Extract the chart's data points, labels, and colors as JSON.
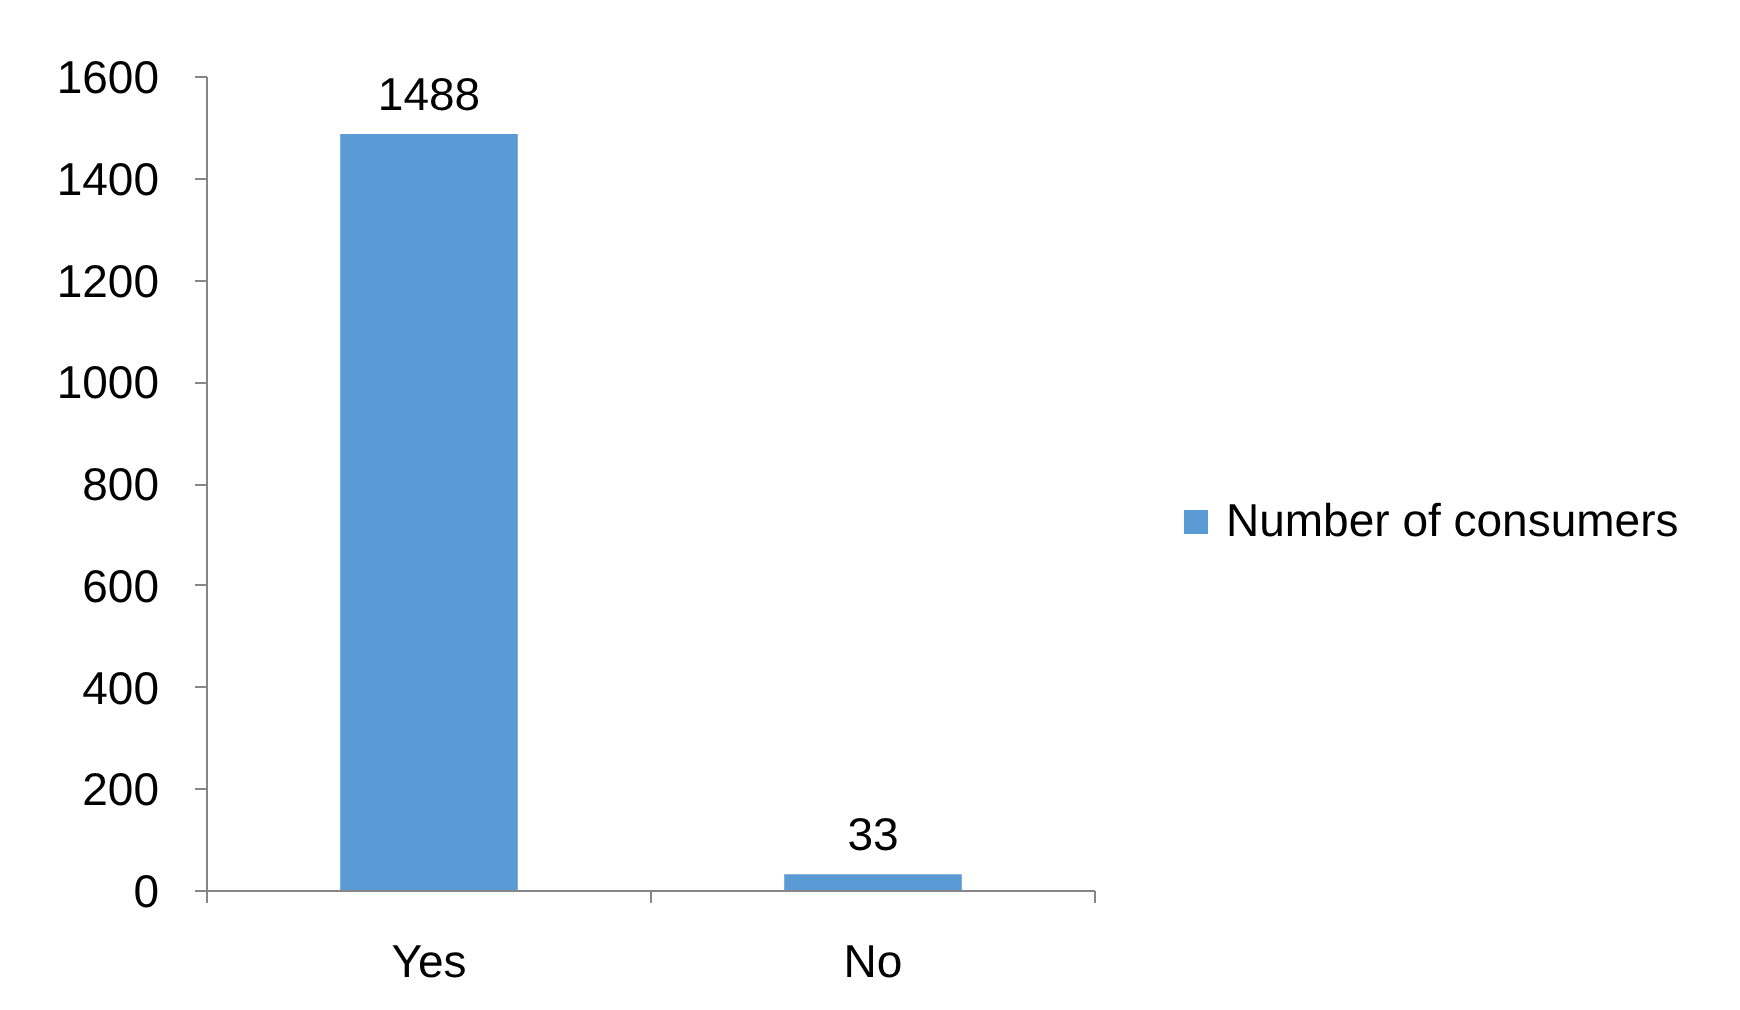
{
  "chart_data": {
    "type": "bar",
    "categories": [
      "Yes",
      "No"
    ],
    "series": [
      {
        "name": "Number of consumers",
        "color": "#5b9bd5",
        "values": [
          1488,
          33
        ]
      }
    ],
    "ylim": [
      0,
      1600
    ],
    "yticks": [
      0,
      200,
      400,
      600,
      800,
      1000,
      1200,
      1400,
      1600
    ],
    "data_labels": true,
    "legend": "right",
    "grid": false
  }
}
